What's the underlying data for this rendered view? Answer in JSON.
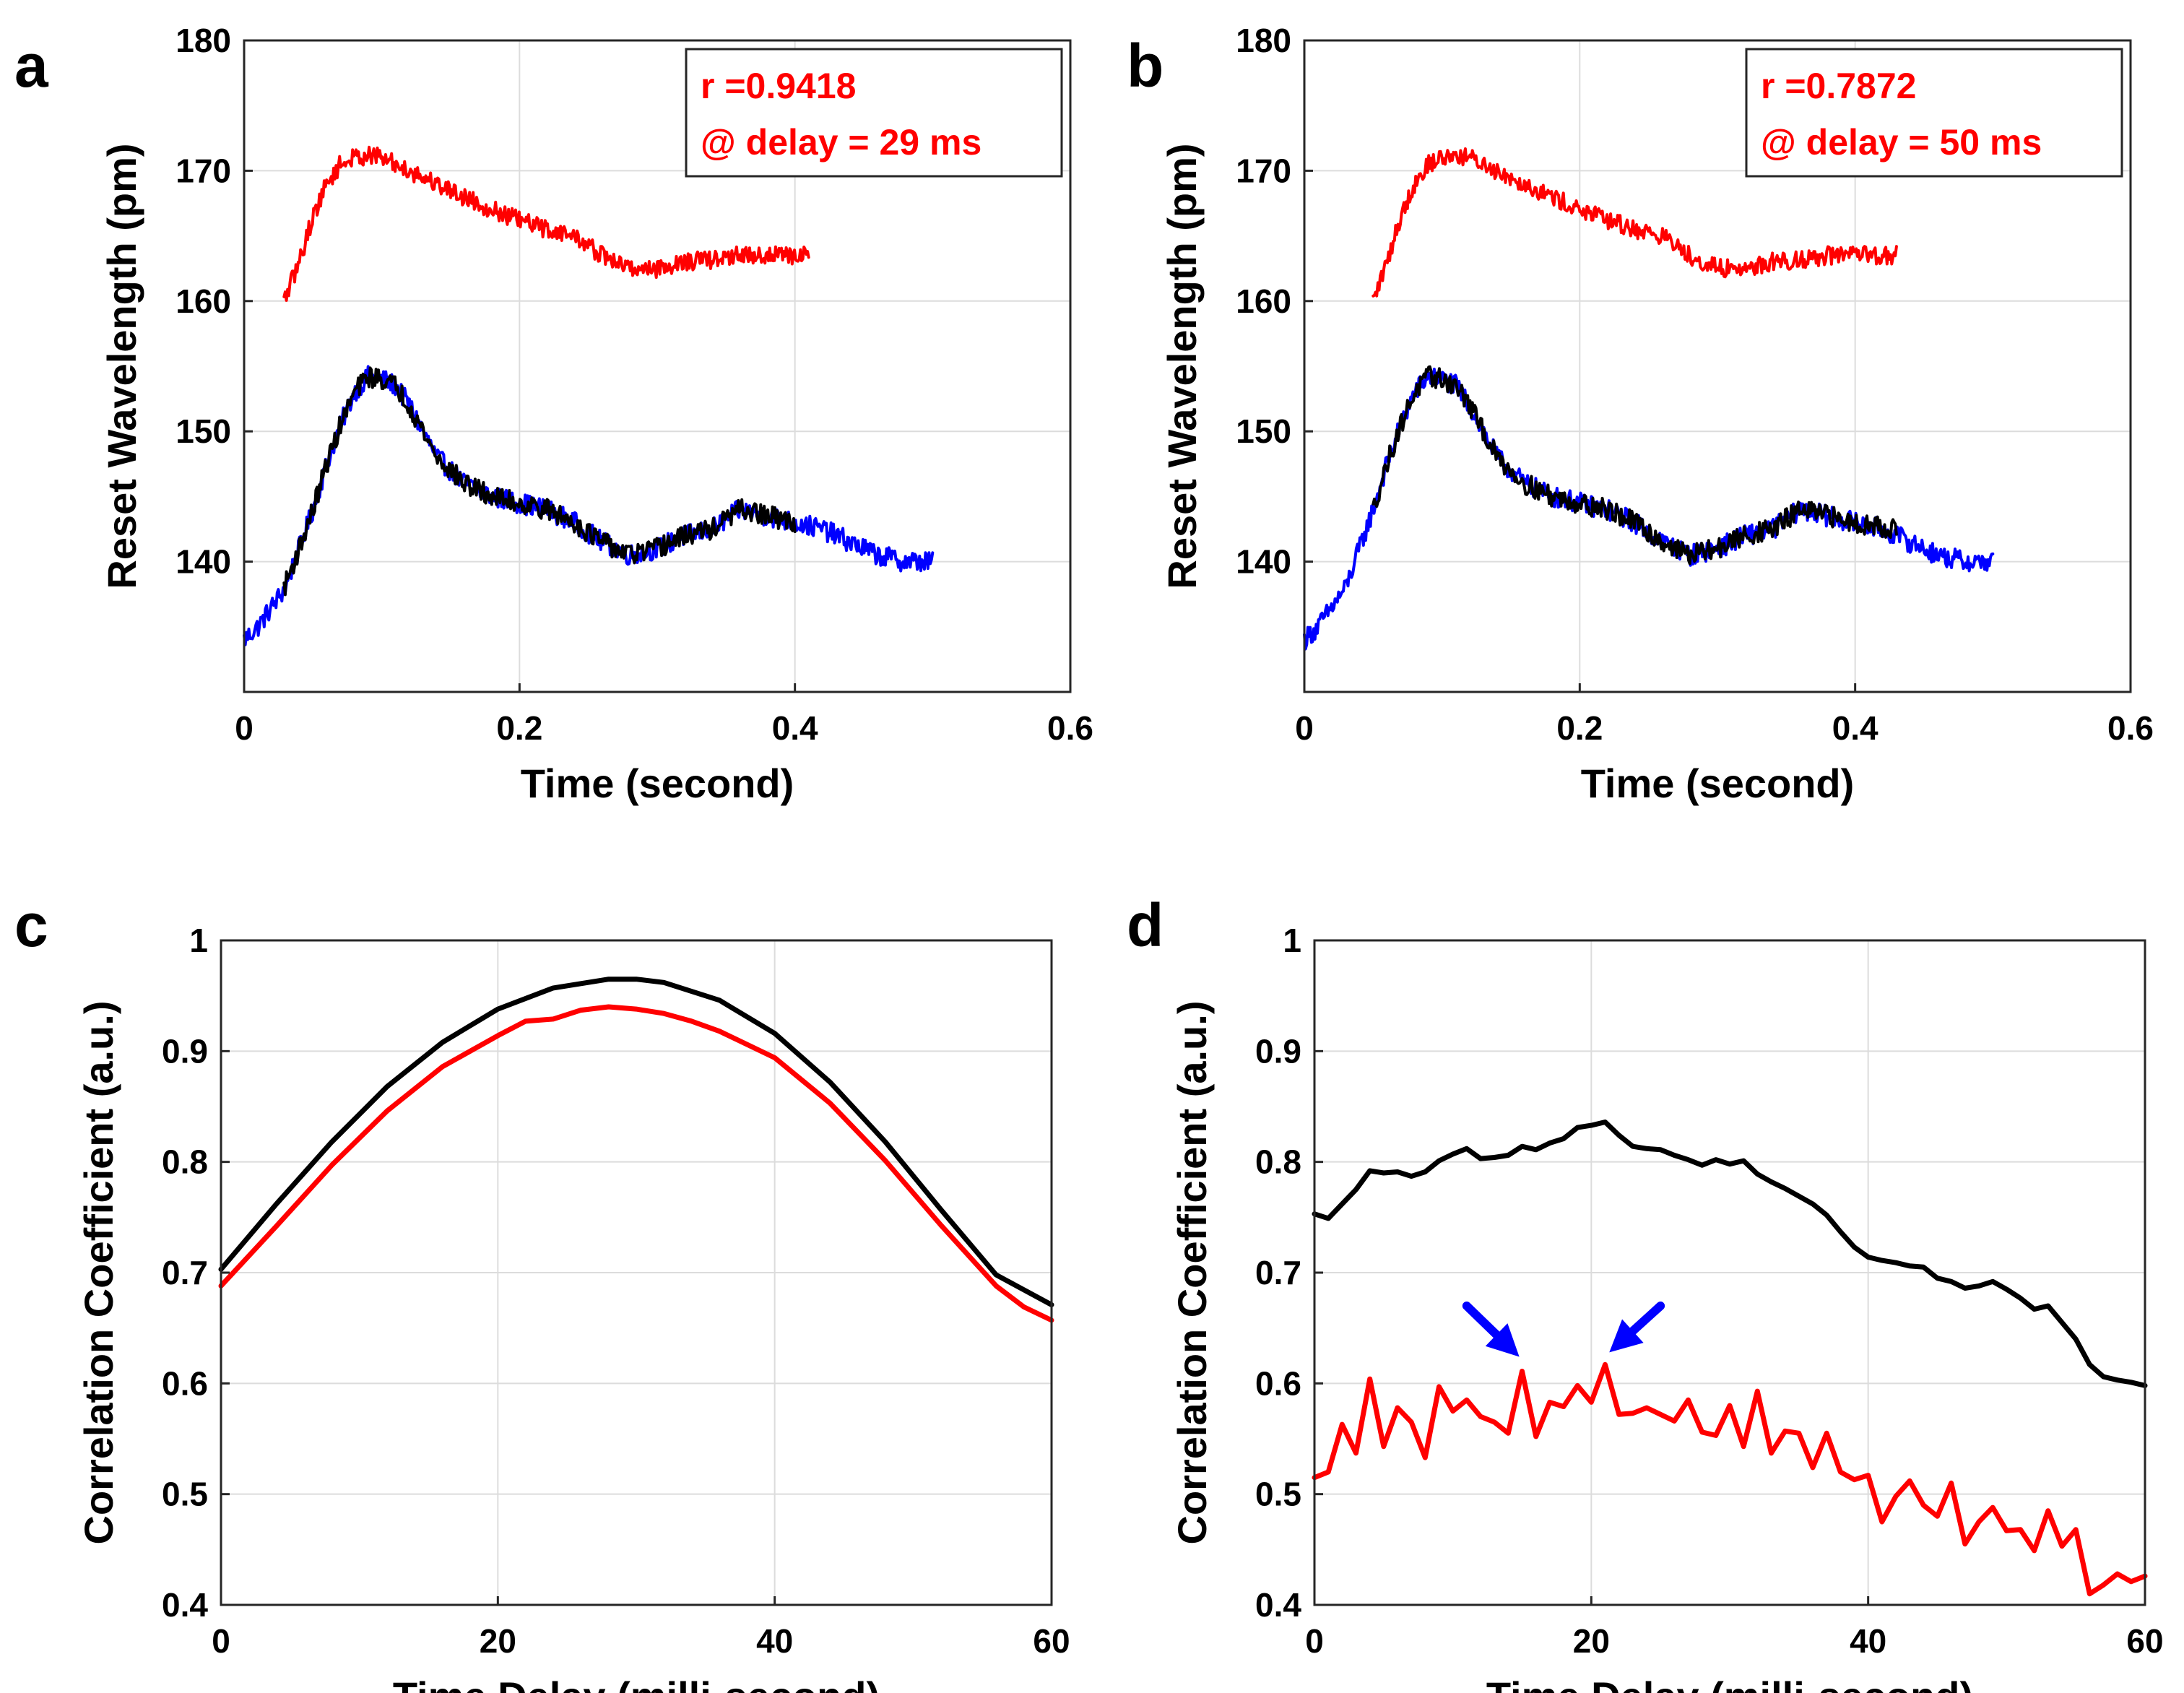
{
  "chart_data": [
    {
      "panel": "a",
      "type": "line",
      "xlabel": "Time  (second)",
      "ylabel": "Reset Wavelength  (pm)",
      "xlim": [
        0,
        0.6
      ],
      "ylim": [
        130,
        180
      ],
      "xticks": [
        0,
        0.2,
        0.4,
        0.6
      ],
      "xtick_labels": [
        "0",
        "0.2",
        "0.4",
        "0.6"
      ],
      "yticks": [
        140,
        150,
        160,
        170,
        180
      ],
      "ytick_labels": [
        "140",
        "150",
        "160",
        "170",
        "180"
      ],
      "grid": true,
      "annotation": {
        "line1": "r =0.9418",
        "line2": "@ delay = 29 ms",
        "color": "#ff0000",
        "placement": "top-right"
      },
      "series": [
        {
          "name": "blue",
          "color": "#0000ff",
          "noise": 0.8,
          "x": [
            0,
            0.01,
            0.02,
            0.03,
            0.04,
            0.05,
            0.06,
            0.07,
            0.08,
            0.09,
            0.1,
            0.11,
            0.12,
            0.13,
            0.14,
            0.15,
            0.16,
            0.18,
            0.2,
            0.22,
            0.24,
            0.26,
            0.27,
            0.28,
            0.3,
            0.32,
            0.34,
            0.36,
            0.38,
            0.4,
            0.42,
            0.44,
            0.46,
            0.48,
            0.5
          ],
          "y": [
            134,
            135,
            136.5,
            138,
            141,
            144,
            147.5,
            150.5,
            153,
            154.2,
            154,
            153.5,
            152,
            150,
            148,
            147,
            146,
            145,
            144.5,
            144,
            143,
            141.5,
            141,
            140.5,
            141,
            142,
            142.5,
            144,
            143.5,
            143,
            142.5,
            141.5,
            140.5,
            140,
            140
          ]
        },
        {
          "name": "black",
          "color": "#000000",
          "noise": 0.8,
          "x": [
            0.029,
            0.04,
            0.05,
            0.06,
            0.07,
            0.08,
            0.09,
            0.1,
            0.11,
            0.12,
            0.13,
            0.14,
            0.15,
            0.16,
            0.18,
            0.2,
            0.22,
            0.24,
            0.26,
            0.27,
            0.28,
            0.3,
            0.32,
            0.34,
            0.36,
            0.38,
            0.4
          ],
          "y": [
            138,
            141,
            144,
            147.5,
            150.5,
            153,
            154.2,
            154,
            153.5,
            152,
            150,
            148,
            147,
            146,
            145,
            144.5,
            144,
            143,
            141.5,
            141,
            140.5,
            141,
            142,
            142.5,
            144,
            143.5,
            143
          ]
        },
        {
          "name": "red",
          "color": "#ff0000",
          "noise": 0.7,
          "x": [
            0.029,
            0.04,
            0.05,
            0.06,
            0.07,
            0.08,
            0.09,
            0.1,
            0.11,
            0.12,
            0.14,
            0.16,
            0.18,
            0.2,
            0.22,
            0.24,
            0.26,
            0.28,
            0.3,
            0.32,
            0.34,
            0.36,
            0.38,
            0.41
          ],
          "y": [
            160,
            163,
            166.5,
            169,
            170.5,
            171,
            171.2,
            171,
            170.5,
            170,
            169,
            168,
            167,
            166.2,
            165.5,
            165,
            163.5,
            162.5,
            162.5,
            163,
            163.2,
            163.5,
            163.5,
            163.5
          ]
        }
      ]
    },
    {
      "panel": "b",
      "type": "line",
      "xlabel": "Time  (second)",
      "ylabel": "Reset Wavelength  (pm)",
      "xlim": [
        0,
        0.6
      ],
      "ylim": [
        130,
        180
      ],
      "xticks": [
        0,
        0.2,
        0.4,
        0.6
      ],
      "xtick_labels": [
        "0",
        "0.2",
        "0.4",
        "0.6"
      ],
      "yticks": [
        140,
        150,
        160,
        170,
        180
      ],
      "ytick_labels": [
        "140",
        "150",
        "160",
        "170",
        "180"
      ],
      "grid": true,
      "annotation": {
        "line1": "r =0.7872",
        "line2": "@ delay = 50 ms",
        "color": "#ff0000",
        "placement": "top-right"
      },
      "series": [
        {
          "name": "blue",
          "color": "#0000ff",
          "noise": 0.8,
          "x": [
            0,
            0.01,
            0.02,
            0.03,
            0.04,
            0.05,
            0.06,
            0.07,
            0.08,
            0.09,
            0.1,
            0.11,
            0.12,
            0.13,
            0.14,
            0.15,
            0.16,
            0.18,
            0.2,
            0.22,
            0.24,
            0.26,
            0.27,
            0.28,
            0.3,
            0.32,
            0.34,
            0.36,
            0.38,
            0.4,
            0.42,
            0.44,
            0.46,
            0.48,
            0.5
          ],
          "y": [
            134,
            135,
            136.5,
            138,
            141,
            144,
            147.5,
            150.5,
            153,
            154.2,
            154,
            153.5,
            152,
            150,
            148,
            147,
            146,
            145,
            144.5,
            144,
            143,
            141.5,
            141,
            140.5,
            141,
            142,
            142.5,
            144,
            143.5,
            143,
            142.5,
            141.5,
            140.5,
            140,
            140
          ]
        },
        {
          "name": "black",
          "color": "#000000",
          "noise": 0.8,
          "x": [
            0.05,
            0.06,
            0.07,
            0.08,
            0.09,
            0.1,
            0.11,
            0.12,
            0.13,
            0.14,
            0.15,
            0.16,
            0.18,
            0.2,
            0.22,
            0.24,
            0.26,
            0.27,
            0.28,
            0.3,
            0.32,
            0.34,
            0.36,
            0.38,
            0.4,
            0.43
          ],
          "y": [
            144,
            147.5,
            150.5,
            153,
            154.2,
            154,
            153.5,
            152,
            150,
            148,
            147,
            146,
            145,
            144.5,
            144,
            143,
            141.5,
            141,
            140.5,
            141,
            142,
            142.5,
            144,
            143.5,
            143,
            142.5
          ]
        },
        {
          "name": "red",
          "color": "#ff0000",
          "noise": 0.7,
          "x": [
            0.05,
            0.06,
            0.07,
            0.08,
            0.09,
            0.1,
            0.11,
            0.12,
            0.13,
            0.14,
            0.16,
            0.18,
            0.2,
            0.22,
            0.24,
            0.26,
            0.28,
            0.3,
            0.32,
            0.34,
            0.36,
            0.38,
            0.4,
            0.43
          ],
          "y": [
            160,
            163,
            166.5,
            169,
            170.5,
            171,
            171.2,
            171,
            170.5,
            170,
            169,
            168,
            167,
            166.2,
            165.5,
            165,
            163.5,
            162.5,
            162.5,
            163,
            163.2,
            163.5,
            163.5,
            163.5
          ]
        }
      ]
    },
    {
      "panel": "c",
      "type": "line",
      "xlabel": "Time Delay  (milli-second)",
      "ylabel": "Correlation Coefficient  (a.u.)",
      "xlim": [
        0,
        60
      ],
      "ylim": [
        0.4,
        1
      ],
      "xticks": [
        0,
        20,
        40,
        60
      ],
      "xtick_labels": [
        "0",
        "20",
        "40",
        "60"
      ],
      "yticks": [
        0.4,
        0.5,
        0.6,
        0.7,
        0.8,
        0.9,
        1
      ],
      "ytick_labels": [
        "0.4",
        "0.5",
        "0.6",
        "0.7",
        "0.8",
        "0.9",
        "1"
      ],
      "grid": true,
      "series": [
        {
          "name": "black",
          "color": "#000000",
          "x": [
            0,
            4,
            8,
            12,
            16,
            20,
            24,
            28,
            30,
            32,
            36,
            40,
            44,
            48,
            52,
            56,
            60
          ],
          "y": [
            0.703,
            0.762,
            0.818,
            0.868,
            0.908,
            0.938,
            0.957,
            0.965,
            0.965,
            0.962,
            0.946,
            0.916,
            0.872,
            0.818,
            0.757,
            0.698,
            0.671
          ]
        },
        {
          "name": "red",
          "color": "#ff0000",
          "x": [
            0,
            4,
            8,
            12,
            16,
            20,
            22,
            24,
            26,
            28,
            30,
            32,
            34,
            36,
            40,
            44,
            48,
            52,
            56,
            58,
            60
          ],
          "y": [
            0.688,
            0.742,
            0.797,
            0.846,
            0.886,
            0.914,
            0.927,
            0.929,
            0.937,
            0.94,
            0.938,
            0.934,
            0.927,
            0.918,
            0.894,
            0.853,
            0.801,
            0.743,
            0.688,
            0.669,
            0.657
          ]
        }
      ]
    },
    {
      "panel": "d",
      "type": "line",
      "xlabel": "Time Delay  (milli-second)",
      "ylabel": "Correlation Coefficient  (a.u.)",
      "xlim": [
        0,
        60
      ],
      "ylim": [
        0.4,
        1
      ],
      "xticks": [
        0,
        20,
        40,
        60
      ],
      "xtick_labels": [
        "0",
        "20",
        "40",
        "60"
      ],
      "yticks": [
        0.4,
        0.5,
        0.6,
        0.7,
        0.8,
        0.9,
        1
      ],
      "ytick_labels": [
        "0.4",
        "0.5",
        "0.6",
        "0.7",
        "0.8",
        "0.9",
        "1"
      ],
      "grid": true,
      "arrows": [
        {
          "color": "#0000ff",
          "from_x": 11,
          "from_y": 0.67,
          "to_x": 14.8,
          "to_y": 0.624
        },
        {
          "color": "#0000ff",
          "from_x": 25,
          "from_y": 0.67,
          "to_x": 21.3,
          "to_y": 0.628
        }
      ],
      "series": [
        {
          "name": "black",
          "color": "#000000",
          "x": [
            0,
            1,
            2,
            3,
            4,
            5,
            6,
            7,
            8,
            9,
            10,
            11,
            12,
            13,
            14,
            15,
            16,
            17,
            18,
            19,
            20,
            21,
            22,
            23,
            24,
            25,
            26,
            27,
            28,
            29,
            30,
            31,
            32,
            33,
            34,
            35,
            36,
            37,
            38,
            39,
            40,
            41,
            42,
            43,
            44,
            45,
            46,
            47,
            48,
            49,
            50,
            51,
            52,
            53,
            54,
            55,
            56,
            57,
            58,
            59,
            60
          ],
          "y": [
            0.753,
            0.749,
            0.762,
            0.775,
            0.792,
            0.79,
            0.791,
            0.787,
            0.791,
            0.801,
            0.807,
            0.812,
            0.803,
            0.804,
            0.806,
            0.814,
            0.811,
            0.817,
            0.821,
            0.831,
            0.833,
            0.836,
            0.824,
            0.814,
            0.812,
            0.811,
            0.806,
            0.802,
            0.797,
            0.802,
            0.798,
            0.801,
            0.789,
            0.782,
            0.776,
            0.769,
            0.762,
            0.752,
            0.737,
            0.723,
            0.714,
            0.711,
            0.709,
            0.706,
            0.705,
            0.695,
            0.692,
            0.686,
            0.688,
            0.692,
            0.685,
            0.677,
            0.667,
            0.67,
            0.655,
            0.64,
            0.617,
            0.606,
            0.603,
            0.601,
            0.598
          ]
        },
        {
          "name": "red",
          "color": "#ff0000",
          "x": [
            0,
            1,
            2,
            3,
            4,
            5,
            6,
            7,
            8,
            9,
            10,
            11,
            12,
            13,
            14,
            15,
            16,
            17,
            18,
            19,
            20,
            21,
            22,
            23,
            24,
            25,
            26,
            27,
            28,
            29,
            30,
            31,
            32,
            33,
            34,
            35,
            36,
            37,
            38,
            39,
            40,
            41,
            42,
            43,
            44,
            45,
            46,
            47,
            48,
            49,
            50,
            51,
            52,
            53,
            54,
            55,
            56,
            57,
            58,
            59,
            60
          ],
          "y": [
            0.515,
            0.52,
            0.563,
            0.537,
            0.604,
            0.543,
            0.578,
            0.565,
            0.533,
            0.597,
            0.575,
            0.585,
            0.57,
            0.565,
            0.555,
            0.611,
            0.552,
            0.583,
            0.579,
            0.598,
            0.583,
            0.617,
            0.572,
            0.573,
            0.578,
            0.572,
            0.566,
            0.585,
            0.556,
            0.553,
            0.58,
            0.543,
            0.593,
            0.537,
            0.557,
            0.555,
            0.524,
            0.555,
            0.52,
            0.513,
            0.517,
            0.475,
            0.498,
            0.512,
            0.49,
            0.48,
            0.51,
            0.455,
            0.475,
            0.488,
            0.467,
            0.468,
            0.449,
            0.485,
            0.453,
            0.468,
            0.41,
            0.418,
            0.428,
            0.421,
            0.426
          ]
        }
      ]
    }
  ]
}
